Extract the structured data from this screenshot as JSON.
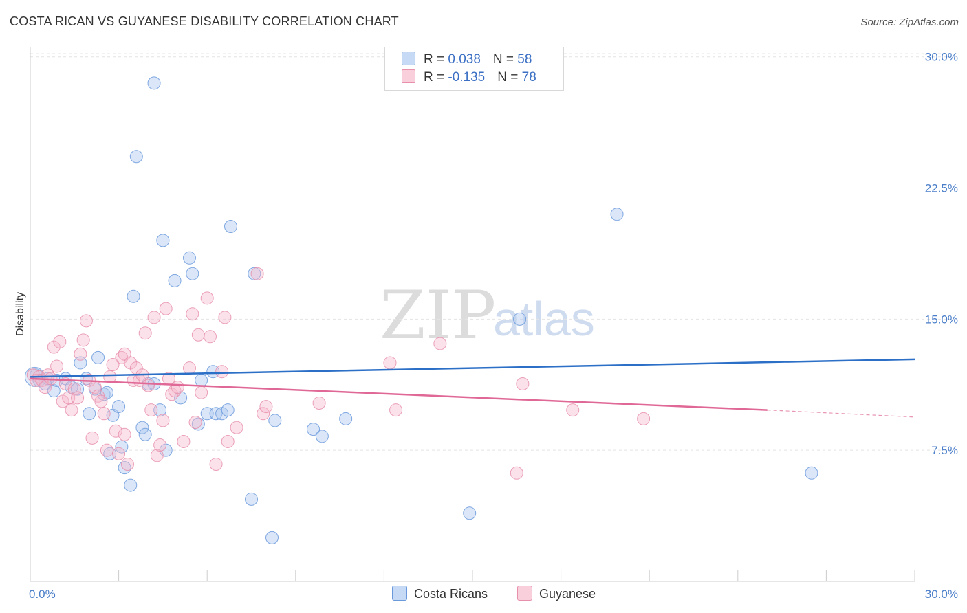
{
  "header": {
    "title": "COSTA RICAN VS GUYANESE DISABILITY CORRELATION CHART",
    "source": "Source: ZipAtlas.com"
  },
  "legend": {
    "rows": [
      {
        "r_label": "R = ",
        "r_value": "0.038",
        "n_label": "N = ",
        "n_value": "58"
      },
      {
        "r_label": "R = ",
        "r_value": "-0.135",
        "n_label": "N = ",
        "n_value": "78"
      }
    ]
  },
  "colors": {
    "blue_fill": "#a9c6ef",
    "blue_stroke": "#6a99dc",
    "blue_line": "#2c6fc7",
    "pink_fill": "#f6b9cc",
    "pink_stroke": "#e88fab",
    "pink_line": "#e06896"
  },
  "watermark": {
    "zip": "ZIP",
    "atlas": "atlas"
  },
  "chart_data": {
    "type": "scatter",
    "title": "COSTA RICAN VS GUYANESE DISABILITY CORRELATION CHART",
    "xlabel": "",
    "ylabel": "Disability",
    "xlim": [
      0,
      30
    ],
    "ylim": [
      0,
      30.5
    ],
    "x_tick_labels": [
      "0.0%",
      "30.0%"
    ],
    "y_ticks": [
      7.5,
      15.0,
      22.5,
      30.0
    ],
    "y_tick_labels": [
      "7.5%",
      "15.0%",
      "22.5%",
      "30.0%"
    ],
    "grid": true,
    "legend_position": "top-center",
    "series": [
      {
        "name": "Costa Ricans",
        "r": 0.038,
        "n": 58,
        "trend": {
          "x": [
            0,
            30
          ],
          "y": [
            11.7,
            12.7
          ]
        },
        "points": [
          [
            0.2,
            11.8
          ],
          [
            0.3,
            11.5
          ],
          [
            0.5,
            11.3
          ],
          [
            0.6,
            11.6
          ],
          [
            0.8,
            10.9
          ],
          [
            0.9,
            11.5
          ],
          [
            1.2,
            11.6
          ],
          [
            1.4,
            11.1
          ],
          [
            1.6,
            11.0
          ],
          [
            1.7,
            12.5
          ],
          [
            1.9,
            11.6
          ],
          [
            2.0,
            9.6
          ],
          [
            2.2,
            11.0
          ],
          [
            2.3,
            12.8
          ],
          [
            2.5,
            10.7
          ],
          [
            2.6,
            10.8
          ],
          [
            2.7,
            7.3
          ],
          [
            2.8,
            9.5
          ],
          [
            3.0,
            10.0
          ],
          [
            3.1,
            7.7
          ],
          [
            3.2,
            6.5
          ],
          [
            3.4,
            5.5
          ],
          [
            3.5,
            16.3
          ],
          [
            3.6,
            24.3
          ],
          [
            3.8,
            8.8
          ],
          [
            3.9,
            8.4
          ],
          [
            4.0,
            11.3
          ],
          [
            4.2,
            11.3
          ],
          [
            4.2,
            28.5
          ],
          [
            4.4,
            9.8
          ],
          [
            4.5,
            19.5
          ],
          [
            4.6,
            7.5
          ],
          [
            4.9,
            17.2
          ],
          [
            5.1,
            10.5
          ],
          [
            5.4,
            18.5
          ],
          [
            5.5,
            17.6
          ],
          [
            5.7,
            9.0
          ],
          [
            5.8,
            11.5
          ],
          [
            6.0,
            9.6
          ],
          [
            6.2,
            12.0
          ],
          [
            6.3,
            9.6
          ],
          [
            6.5,
            9.6
          ],
          [
            6.7,
            9.8
          ],
          [
            6.8,
            20.3
          ],
          [
            7.5,
            4.7
          ],
          [
            7.6,
            17.6
          ],
          [
            8.2,
            2.5
          ],
          [
            8.3,
            9.2
          ],
          [
            9.6,
            8.7
          ],
          [
            9.9,
            8.3
          ],
          [
            10.7,
            9.3
          ],
          [
            12.3,
            28.5
          ],
          [
            14.9,
            3.9
          ],
          [
            16.6,
            15.0
          ],
          [
            19.9,
            21.0
          ],
          [
            26.5,
            6.2
          ]
        ]
      },
      {
        "name": "Guyanese",
        "r": -0.135,
        "n": 78,
        "trend": {
          "x": [
            0,
            25
          ],
          "y": [
            11.6,
            9.8
          ]
        },
        "trend_extension": {
          "x": [
            25,
            30
          ],
          "y": [
            9.8,
            9.4
          ]
        },
        "points": [
          [
            0.1,
            11.8
          ],
          [
            0.2,
            11.5
          ],
          [
            0.3,
            11.7
          ],
          [
            0.4,
            11.5
          ],
          [
            0.5,
            11.1
          ],
          [
            0.6,
            11.8
          ],
          [
            0.7,
            11.6
          ],
          [
            0.8,
            13.4
          ],
          [
            0.9,
            12.3
          ],
          [
            1.0,
            13.7
          ],
          [
            1.1,
            10.3
          ],
          [
            1.2,
            11.3
          ],
          [
            1.3,
            10.5
          ],
          [
            1.4,
            9.8
          ],
          [
            1.5,
            11.0
          ],
          [
            1.6,
            10.5
          ],
          [
            1.7,
            13.0
          ],
          [
            1.8,
            13.8
          ],
          [
            1.9,
            14.9
          ],
          [
            2.0,
            11.5
          ],
          [
            2.1,
            8.2
          ],
          [
            2.2,
            11.1
          ],
          [
            2.3,
            10.6
          ],
          [
            2.4,
            10.3
          ],
          [
            2.5,
            9.6
          ],
          [
            2.6,
            7.5
          ],
          [
            2.7,
            11.7
          ],
          [
            2.8,
            12.4
          ],
          [
            2.9,
            8.6
          ],
          [
            3.0,
            7.3
          ],
          [
            3.1,
            12.8
          ],
          [
            3.2,
            13.0
          ],
          [
            3.2,
            8.4
          ],
          [
            3.3,
            6.7
          ],
          [
            3.4,
            12.5
          ],
          [
            3.5,
            11.5
          ],
          [
            3.6,
            12.2
          ],
          [
            3.7,
            11.5
          ],
          [
            3.8,
            11.8
          ],
          [
            3.9,
            14.2
          ],
          [
            4.0,
            11.2
          ],
          [
            4.1,
            9.8
          ],
          [
            4.2,
            15.1
          ],
          [
            4.3,
            7.2
          ],
          [
            4.4,
            7.8
          ],
          [
            4.5,
            9.2
          ],
          [
            4.6,
            15.6
          ],
          [
            4.7,
            11.6
          ],
          [
            4.8,
            10.7
          ],
          [
            4.9,
            10.9
          ],
          [
            5.0,
            11.1
          ],
          [
            5.2,
            8.0
          ],
          [
            5.4,
            12.2
          ],
          [
            5.5,
            15.3
          ],
          [
            5.6,
            9.1
          ],
          [
            5.7,
            14.1
          ],
          [
            5.8,
            10.8
          ],
          [
            6.0,
            16.2
          ],
          [
            6.1,
            14.0
          ],
          [
            6.3,
            6.7
          ],
          [
            6.5,
            12.0
          ],
          [
            6.6,
            15.1
          ],
          [
            6.7,
            8.0
          ],
          [
            7.0,
            8.8
          ],
          [
            7.7,
            17.6
          ],
          [
            7.9,
            9.6
          ],
          [
            8.0,
            10.0
          ],
          [
            9.8,
            10.2
          ],
          [
            12.2,
            12.5
          ],
          [
            12.4,
            9.8
          ],
          [
            13.9,
            13.6
          ],
          [
            16.5,
            6.2
          ],
          [
            16.7,
            11.3
          ],
          [
            18.4,
            9.8
          ],
          [
            20.8,
            9.3
          ]
        ]
      }
    ]
  },
  "bottom_legend": {
    "items": [
      "Costa Ricans",
      "Guyanese"
    ]
  }
}
